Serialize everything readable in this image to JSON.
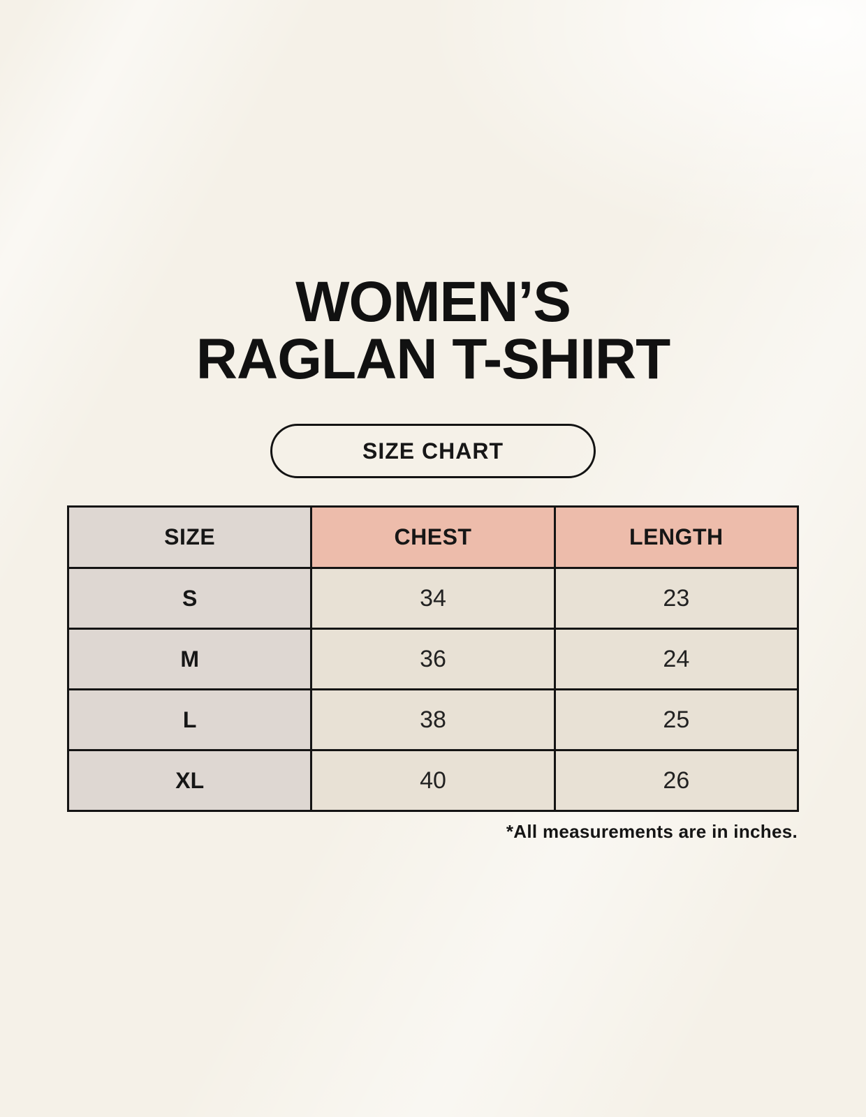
{
  "header": {
    "title_line1": "WOMEN’S",
    "title_line2": "RAGLAN T-SHIRT"
  },
  "badge": {
    "label": "SIZE CHART"
  },
  "chart_data": {
    "type": "table",
    "title": "WOMEN’S RAGLAN T-SHIRT SIZE CHART",
    "columns": [
      "SIZE",
      "CHEST",
      "LENGTH"
    ],
    "rows": [
      [
        "S",
        "34",
        "23"
      ],
      [
        "M",
        "36",
        "24"
      ],
      [
        "L",
        "38",
        "25"
      ],
      [
        "XL",
        "40",
        "26"
      ]
    ],
    "units_note": "*All measurements are in inches."
  },
  "colors": {
    "background": "#f5f1e8",
    "size_column_bg": "#ded7d2",
    "measure_header_bg": "#edbcab",
    "data_cell_bg": "#e8e1d5",
    "border": "#141414"
  }
}
